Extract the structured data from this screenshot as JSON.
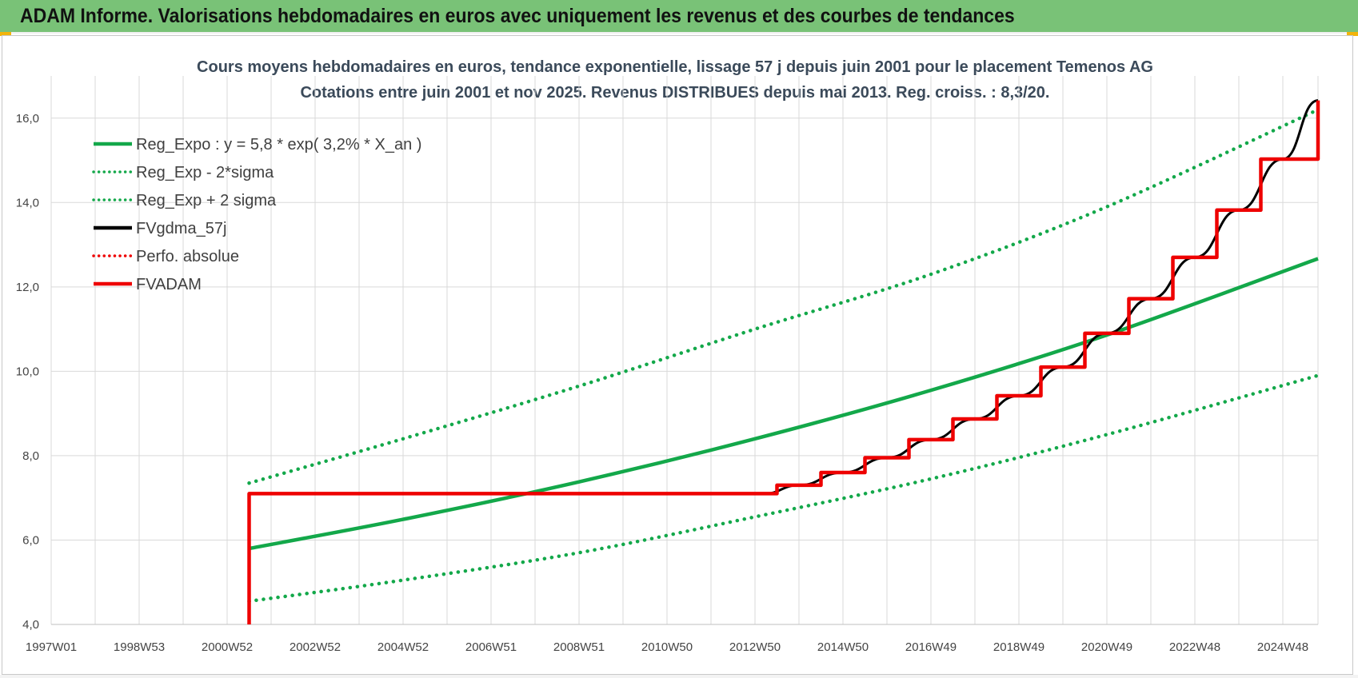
{
  "banner": {
    "title": "ADAM Informe. Valorisations hebdomadaires en euros avec uniquement les revenus et des courbes de tendances"
  },
  "colors": {
    "banner_bg": "#79c277",
    "green": "#13a84a",
    "black": "#000000",
    "red": "#ee0000",
    "grid": "#d9d9d9"
  },
  "chart_data": {
    "type": "line",
    "title": "Cours moyens hebdomadaires en euros, tendance exponentielle, lissage 57 j depuis juin 2001 pour le placement Temenos AG",
    "subtitle": "Cotations entre juin 2001 et nov 2025.  Revenus DISTRIBUES  depuis mai 2013. Reg. croiss. : 8,3/20.",
    "xlabel": "",
    "ylabel": "",
    "xlim": [
      1997.0,
      2025.8
    ],
    "ylim": [
      4.0,
      17.0
    ],
    "y_ticks": [
      "4,0",
      "6,0",
      "8,0",
      "10,0",
      "12,0",
      "14,0",
      "16,0"
    ],
    "x_ticks": [
      {
        "x": 1997.0,
        "label": "1997W01"
      },
      {
        "x": 1999.0,
        "label": "1998W53"
      },
      {
        "x": 2001.0,
        "label": "2000W52"
      },
      {
        "x": 2003.0,
        "label": "2002W52"
      },
      {
        "x": 2005.0,
        "label": "2004W52"
      },
      {
        "x": 2007.0,
        "label": "2006W51"
      },
      {
        "x": 2009.0,
        "label": "2008W51"
      },
      {
        "x": 2011.0,
        "label": "2010W50"
      },
      {
        "x": 2013.0,
        "label": "2012W50"
      },
      {
        "x": 2015.0,
        "label": "2014W50"
      },
      {
        "x": 2017.0,
        "label": "2016W49"
      },
      {
        "x": 2019.0,
        "label": "2018W49"
      },
      {
        "x": 2021.0,
        "label": "2020W49"
      },
      {
        "x": 2023.0,
        "label": "2022W48"
      },
      {
        "x": 2025.0,
        "label": "2024W48"
      }
    ],
    "grid": true,
    "legend_position": "top-left",
    "series": [
      {
        "name": "Reg_Expo : y = 5,8 * exp( 3,2% *  X_an )",
        "style": "solid",
        "color": "#13a84a",
        "x": [
          2001.5,
          2005,
          2009,
          2013,
          2017,
          2021,
          2025.8
        ],
        "y": [
          5.8,
          6.49,
          7.38,
          8.4,
          9.55,
          10.86,
          12.67
        ]
      },
      {
        "name": "Reg_Exp - 2*sigma",
        "style": "dotted",
        "color": "#13a84a",
        "x": [
          2001.5,
          2005,
          2009,
          2013,
          2017,
          2021,
          2025.8
        ],
        "y": [
          4.55,
          5.05,
          5.7,
          6.55,
          7.45,
          8.5,
          9.9
        ]
      },
      {
        "name": "Reg_Exp + 2 sigma",
        "style": "dotted",
        "color": "#13a84a",
        "x": [
          2001.5,
          2005,
          2009,
          2013,
          2017,
          2021,
          2025.8
        ],
        "y": [
          7.35,
          8.4,
          9.65,
          11.0,
          12.3,
          13.9,
          16.2
        ]
      },
      {
        "name": "FVgdma_57j",
        "style": "solid",
        "color": "#000000",
        "x": [
          2001.5,
          2013.2,
          2014.0,
          2015.0,
          2016.0,
          2017.0,
          2018.0,
          2019.0,
          2020.0,
          2021.0,
          2022.0,
          2023.0,
          2024.0,
          2025.0,
          2025.8
        ],
        "y": [
          7.1,
          7.1,
          7.3,
          7.6,
          7.95,
          8.38,
          8.87,
          9.42,
          10.1,
          10.9,
          11.72,
          12.7,
          13.82,
          15.03,
          16.42
        ]
      },
      {
        "name": "Perfo. absolue",
        "style": "dotted",
        "color": "#ee0000",
        "x": [],
        "y": []
      },
      {
        "name": "FVADAM",
        "style": "solid",
        "color": "#ee0000",
        "x": [
          2001.5,
          2001.5,
          2013.2,
          2013.5,
          2014.5,
          2015.5,
          2016.5,
          2017.5,
          2018.5,
          2019.5,
          2020.5,
          2021.5,
          2022.5,
          2023.5,
          2024.5,
          2025.8
        ],
        "y": [
          4.0,
          7.1,
          7.1,
          7.3,
          7.6,
          7.95,
          8.38,
          8.87,
          9.42,
          10.1,
          10.9,
          11.72,
          12.7,
          13.82,
          15.03,
          16.42
        ]
      }
    ]
  }
}
